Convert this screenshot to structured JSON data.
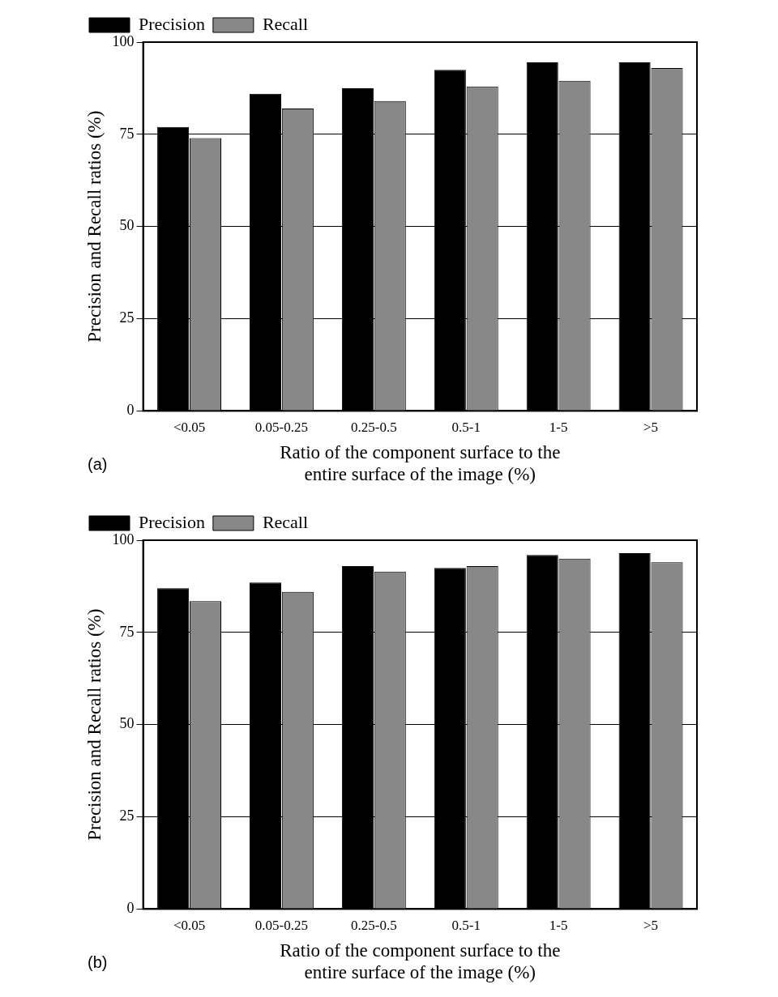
{
  "chart_data": [
    {
      "type": "bar",
      "annotation": "(a)",
      "x_label": [
        "Ratio of the component surface to the",
        "entire surface of the image (%)"
      ],
      "y_label": "Precision and Recall ratios (%)",
      "categories": [
        "<0.05",
        "0.05-0.25",
        "0.25-0.5",
        "0.5-1",
        "1-5",
        ">5"
      ],
      "series": [
        {
          "name": "Precision",
          "color": "#000000",
          "values": [
            77,
            86,
            87.5,
            92.5,
            94.5,
            94.5
          ]
        },
        {
          "name": "Recall",
          "color": "#888888",
          "values": [
            74,
            82,
            84,
            88,
            89.5,
            93
          ]
        }
      ],
      "ylim": [
        0,
        100
      ],
      "yticks": [
        0,
        25,
        50,
        75,
        100
      ],
      "grid": true,
      "legend": "top"
    },
    {
      "type": "bar",
      "annotation": "(b)",
      "x_label": [
        "Ratio of the component surface to the",
        "entire surface of the image (%)"
      ],
      "y_label": "Precision and Recall ratios (%)",
      "categories": [
        "<0.05",
        "0.05-0.25",
        "0.25-0.5",
        "0.5-1",
        "1-5",
        ">5"
      ],
      "series": [
        {
          "name": "Precision",
          "color": "#000000",
          "values": [
            87,
            88.5,
            93,
            92.5,
            96,
            96.5
          ]
        },
        {
          "name": "Recall",
          "color": "#888888",
          "values": [
            83.5,
            86,
            91.5,
            93,
            95,
            94
          ]
        }
      ],
      "ylim": [
        0,
        100
      ],
      "yticks": [
        0,
        25,
        50,
        75,
        100
      ],
      "grid": true,
      "legend": "top"
    }
  ]
}
